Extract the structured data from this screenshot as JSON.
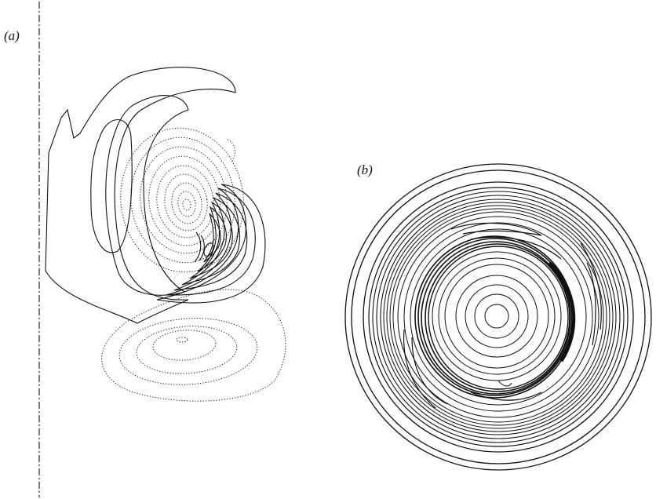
{
  "figure": {
    "panel_a_label": "(a)",
    "panel_b_label": "(b)"
  }
}
